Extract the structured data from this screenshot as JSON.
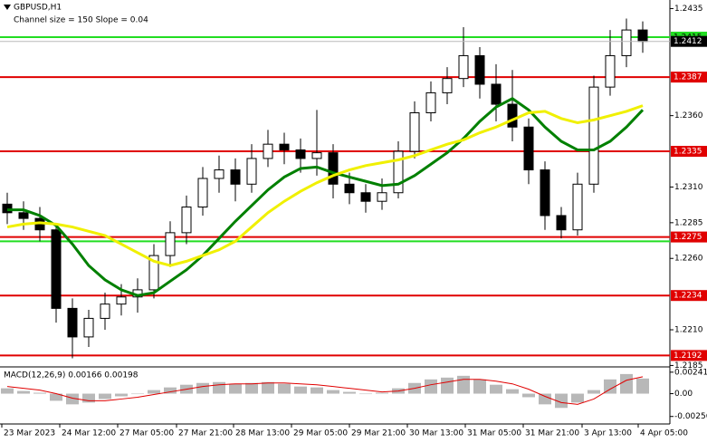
{
  "chart_data": {
    "type": "candlestick",
    "title": "GBPUSD,H1",
    "subtitle": "Channel size = 150 Slope = 0.04",
    "ylim": [
      1.2184,
      1.2441
    ],
    "yticks": [
      1.2435,
      {
        "value": 1.236,
        "label": "1.2360"
      },
      {
        "value": 1.231,
        "label": "1.2310"
      },
      1.2285,
      {
        "value": 1.226,
        "label": "1.2260"
      },
      {
        "value": 1.221,
        "label": "1.2210"
      },
      1.2185
    ],
    "levels": [
      {
        "value": 1.2387,
        "color": "#e00000"
      },
      {
        "value": 1.2335,
        "color": "#e00000"
      },
      {
        "value": 1.2275,
        "color": "#e00000"
      },
      {
        "value": 1.2234,
        "color": "#e00000"
      },
      {
        "value": 1.2192,
        "color": "#e00000"
      }
    ],
    "channel": [
      {
        "value": 1.2415,
        "color": "#22dd22"
      },
      {
        "value": 1.2272,
        "color": "#22dd22"
      }
    ],
    "current_price": 1.2412,
    "x_labels": [
      "23 Mar 2023",
      "24 Mar 12:00",
      "27 Mar 05:00",
      "27 Mar 21:00",
      "28 Mar 13:00",
      "29 Mar 05:00",
      "29 Mar 21:00",
      "30 Mar 13:00",
      "31 Mar 05:00",
      "31 Mar 21:00",
      "3 Apr 13:00",
      "4 Apr 05:00"
    ],
    "candles": [
      [
        1.2298,
        1.2306,
        1.2284,
        1.2292
      ],
      [
        1.2292,
        1.23,
        1.228,
        1.2288
      ],
      [
        1.2288,
        1.2296,
        1.2272,
        1.228
      ],
      [
        1.228,
        1.2284,
        1.2215,
        1.2225
      ],
      [
        1.2225,
        1.2232,
        1.219,
        1.2205
      ],
      [
        1.2205,
        1.2224,
        1.2198,
        1.2218
      ],
      [
        1.2218,
        1.2236,
        1.221,
        1.2228
      ],
      [
        1.2228,
        1.2242,
        1.222,
        1.2233
      ],
      [
        1.2233,
        1.2246,
        1.2222,
        1.2238
      ],
      [
        1.2238,
        1.227,
        1.2232,
        1.2262
      ],
      [
        1.2262,
        1.2286,
        1.2254,
        1.2278
      ],
      [
        1.2278,
        1.2304,
        1.227,
        1.2296
      ],
      [
        1.2296,
        1.2324,
        1.229,
        1.2316
      ],
      [
        1.2316,
        1.2332,
        1.2306,
        1.2322
      ],
      [
        1.2322,
        1.233,
        1.23,
        1.2312
      ],
      [
        1.2312,
        1.234,
        1.2306,
        1.233
      ],
      [
        1.233,
        1.235,
        1.2324,
        1.234
      ],
      [
        1.234,
        1.2348,
        1.2326,
        1.2336
      ],
      [
        1.2336,
        1.2344,
        1.232,
        1.233
      ],
      [
        1.233,
        1.2364,
        1.2318,
        1.2334
      ],
      [
        1.2334,
        1.234,
        1.2302,
        1.2312
      ],
      [
        1.2312,
        1.232,
        1.2298,
        1.2306
      ],
      [
        1.2306,
        1.2312,
        1.2292,
        1.23
      ],
      [
        1.23,
        1.2316,
        1.2294,
        1.2306
      ],
      [
        1.2306,
        1.2342,
        1.2302,
        1.2335
      ],
      [
        1.2335,
        1.237,
        1.233,
        1.2362
      ],
      [
        1.2362,
        1.2384,
        1.2356,
        1.2376
      ],
      [
        1.2376,
        1.2394,
        1.2368,
        1.2386
      ],
      [
        1.2386,
        1.2422,
        1.238,
        1.2402
      ],
      [
        1.2402,
        1.2408,
        1.2372,
        1.2382
      ],
      [
        1.2382,
        1.2396,
        1.2356,
        1.2368
      ],
      [
        1.2368,
        1.2392,
        1.2342,
        1.2352
      ],
      [
        1.2352,
        1.2358,
        1.2312,
        1.2322
      ],
      [
        1.2322,
        1.2328,
        1.228,
        1.229
      ],
      [
        1.229,
        1.2296,
        1.2274,
        1.228
      ],
      [
        1.228,
        1.232,
        1.2276,
        1.2312
      ],
      [
        1.2312,
        1.2388,
        1.2306,
        1.238
      ],
      [
        1.238,
        1.242,
        1.2374,
        1.2402
      ],
      [
        1.2402,
        1.2428,
        1.2394,
        1.242
      ],
      [
        1.242,
        1.2426,
        1.2404,
        1.2412
      ]
    ],
    "series": [
      {
        "name": "MA green",
        "color": "#008000",
        "values": [
          1.2294,
          1.2294,
          1.229,
          1.2283,
          1.227,
          1.2255,
          1.2245,
          1.2238,
          1.2234,
          1.2236,
          1.2244,
          1.2252,
          1.2262,
          1.2274,
          1.2286,
          1.2297,
          1.2308,
          1.2317,
          1.2323,
          1.2324,
          1.232,
          1.2317,
          1.2314,
          1.2311,
          1.2312,
          1.2318,
          1.2326,
          1.2334,
          1.2344,
          1.2356,
          1.2366,
          1.2372,
          1.2364,
          1.2352,
          1.2342,
          1.2336,
          1.2336,
          1.2342,
          1.2352,
          1.2364
        ]
      },
      {
        "name": "MA yellow",
        "color": "#f0f000",
        "values": [
          1.2282,
          1.2284,
          1.2285,
          1.2284,
          1.2282,
          1.2279,
          1.2276,
          1.227,
          1.2264,
          1.2258,
          1.2255,
          1.2258,
          1.2262,
          1.2266,
          1.2272,
          1.2282,
          1.2292,
          1.23,
          1.2307,
          1.2313,
          1.2318,
          1.2322,
          1.2325,
          1.2327,
          1.2329,
          1.2332,
          1.2336,
          1.234,
          1.2343,
          1.2348,
          1.2352,
          1.2357,
          1.2362,
          1.2363,
          1.2358,
          1.2355,
          1.2357,
          1.236,
          1.2363,
          1.2367
        ]
      }
    ],
    "macd": {
      "label": "MACD(12,26,9) 0.00166 0.00198",
      "ylim": [
        -0.0033,
        0.0029
      ],
      "yticks": [
        0.00241,
        {
          "value": 0,
          "label": "0.00"
        },
        -0.00256
      ],
      "histogram": {
        "color": "#b8b8b8",
        "values": [
          0.0006,
          0.0003,
          0.0001,
          -0.0008,
          -0.0012,
          -0.001,
          -0.0006,
          -0.0003,
          0.0,
          0.0004,
          0.0007,
          0.001,
          0.0012,
          0.0013,
          0.0011,
          0.0012,
          0.0013,
          0.0011,
          0.0008,
          0.0007,
          0.0004,
          0.0002,
          0.0,
          0.0001,
          0.0006,
          0.0012,
          0.0016,
          0.0018,
          0.002,
          0.0016,
          0.001,
          0.0005,
          -0.0004,
          -0.0012,
          -0.0016,
          -0.001,
          0.0004,
          0.0016,
          0.0022,
          0.0017
        ]
      },
      "signal": {
        "color": "#e00000",
        "values": [
          0.0008,
          0.0006,
          0.0004,
          0.0,
          -0.0005,
          -0.0008,
          -0.0008,
          -0.0006,
          -0.0004,
          -0.0001,
          0.0002,
          0.0005,
          0.0008,
          0.001,
          0.0011,
          0.0011,
          0.0012,
          0.0012,
          0.0011,
          0.001,
          0.0008,
          0.0006,
          0.0004,
          0.0002,
          0.0003,
          0.0006,
          0.001,
          0.0013,
          0.0016,
          0.0016,
          0.0014,
          0.0011,
          0.0005,
          -0.0003,
          -0.001,
          -0.0012,
          -0.0006,
          0.0005,
          0.0015,
          0.0019
        ]
      }
    }
  }
}
